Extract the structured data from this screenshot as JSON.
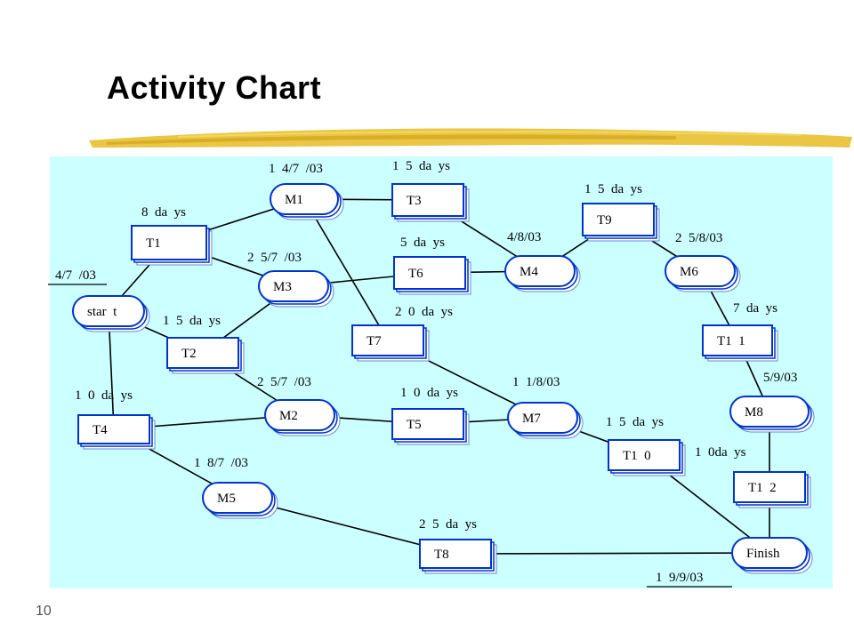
{
  "title": "Activity Chart",
  "page_number": "10",
  "colors": {
    "background": "#ccffff",
    "node_border": "#0033cc",
    "node_shadow": "#6688cc",
    "brush": "#e8c030"
  },
  "nodes": [
    {
      "id": "start",
      "label": "star t",
      "shape": "milestone"
    },
    {
      "id": "T1",
      "label": "T1",
      "shape": "task"
    },
    {
      "id": "M1",
      "label": "M1",
      "shape": "milestone"
    },
    {
      "id": "T3",
      "label": "T3",
      "shape": "task"
    },
    {
      "id": "M3",
      "label": "M3",
      "shape": "milestone"
    },
    {
      "id": "T6",
      "label": "T6",
      "shape": "task"
    },
    {
      "id": "M4",
      "label": "M4",
      "shape": "milestone"
    },
    {
      "id": "T9",
      "label": "T9",
      "shape": "task"
    },
    {
      "id": "M6",
      "label": "M6",
      "shape": "milestone"
    },
    {
      "id": "T2",
      "label": "T2",
      "shape": "task"
    },
    {
      "id": "T7",
      "label": "T7",
      "shape": "task"
    },
    {
      "id": "T11",
      "label": "T1 1",
      "shape": "task"
    },
    {
      "id": "T4",
      "label": "T4",
      "shape": "task"
    },
    {
      "id": "M2",
      "label": "M2",
      "shape": "milestone"
    },
    {
      "id": "T5",
      "label": "T5",
      "shape": "task"
    },
    {
      "id": "M7",
      "label": "M7",
      "shape": "milestone"
    },
    {
      "id": "M8",
      "label": "M8",
      "shape": "milestone"
    },
    {
      "id": "T10",
      "label": "T1 0",
      "shape": "task"
    },
    {
      "id": "M5",
      "label": "M5",
      "shape": "milestone"
    },
    {
      "id": "T12",
      "label": "T1 2",
      "shape": "task"
    },
    {
      "id": "T8",
      "label": "T8",
      "shape": "task"
    },
    {
      "id": "Finish",
      "label": "Finish",
      "shape": "milestone"
    }
  ],
  "edges": [
    [
      "start",
      "T1"
    ],
    [
      "T1",
      "M1"
    ],
    [
      "T1",
      "M3"
    ],
    [
      "M1",
      "T3"
    ],
    [
      "M1",
      "T7"
    ],
    [
      "T3",
      "M4"
    ],
    [
      "M3",
      "T6"
    ],
    [
      "T6",
      "M4"
    ],
    [
      "M3",
      "T2"
    ],
    [
      "start",
      "T2"
    ],
    [
      "M4",
      "T9"
    ],
    [
      "T9",
      "M6"
    ],
    [
      "M6",
      "T11"
    ],
    [
      "T11",
      "M8"
    ],
    [
      "M8",
      "T12"
    ],
    [
      "start",
      "T4"
    ],
    [
      "T4",
      "M2"
    ],
    [
      "T4",
      "M5"
    ],
    [
      "T2",
      "M2"
    ],
    [
      "M2",
      "T5"
    ],
    [
      "T5",
      "M7"
    ],
    [
      "T7",
      "M7"
    ],
    [
      "M7",
      "T10"
    ],
    [
      "T10",
      "Finish"
    ],
    [
      "T12",
      "Finish"
    ],
    [
      "M5",
      "T8"
    ],
    [
      "T8",
      "Finish"
    ]
  ],
  "annotations": [
    "1 4/7 /03",
    "1 5 da ys",
    "8 da ys",
    "1 5 da ys",
    "4/7 /03",
    "5 da ys",
    "4/8/03",
    "2 5/8/03",
    "2 5/7 /03",
    "7 da ys",
    "1 5 da ys",
    "2 0 da ys",
    "5/9/03",
    "1 0 da ys",
    "2 5/7 /03",
    "1 0 da ys",
    "1 1/8/03",
    "1 5 da ys",
    "1 0da ys",
    "1 8/7 /03",
    "2 5 da ys",
    "1 9/9/03"
  ]
}
